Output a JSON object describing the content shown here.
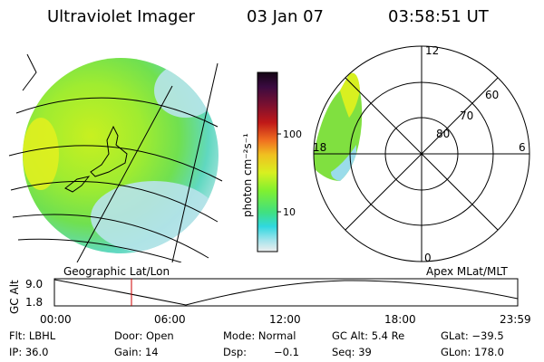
{
  "header": {
    "instrument": "Ultraviolet Imager",
    "date": "03 Jan 07",
    "time": "03:58:51 UT"
  },
  "colorbar": {
    "label": "photon cm⁻²s⁻¹",
    "ticks": [
      "100",
      "10"
    ],
    "colors": [
      "#1a0a1a",
      "#3a0a40",
      "#5a1030",
      "#8a0a20",
      "#c01818",
      "#e04020",
      "#f07020",
      "#f0a020",
      "#f0d020",
      "#e0f020",
      "#b0f020",
      "#80f030",
      "#40e060",
      "#30e0c0",
      "#40d0e0",
      "#90e0e8",
      "#d0ecf0",
      "#eeeeee"
    ]
  },
  "polar": {
    "mlt_labels": [
      "12",
      "18",
      "6",
      "0"
    ],
    "lat_labels": [
      "60",
      "70",
      "80"
    ]
  },
  "map": {
    "label": "Geographic Lat/Lon"
  },
  "polar_caption": "Apex MLat/MLT",
  "timeline": {
    "axis_label": "GC Alt",
    "y_ticks": [
      "9.0",
      "1.8"
    ],
    "x_ticks": [
      "00:00",
      "06:00",
      "12:00",
      "18:00",
      "23:59"
    ],
    "marker_color": "#cc0000"
  },
  "info": {
    "flt": "Flt: LBHL",
    "door": "Door: Open",
    "mode": "Mode: Normal",
    "gc_alt": "GC Alt: 5.4 Re",
    "glat": "GLat: −39.5",
    "ip": "IP: 36.0",
    "gain": "Gain: 14",
    "dsp_label": "Dsp:",
    "dsp_value": "−0.1",
    "seq": "Seq: 39",
    "glon": "GLon: 178.0"
  }
}
